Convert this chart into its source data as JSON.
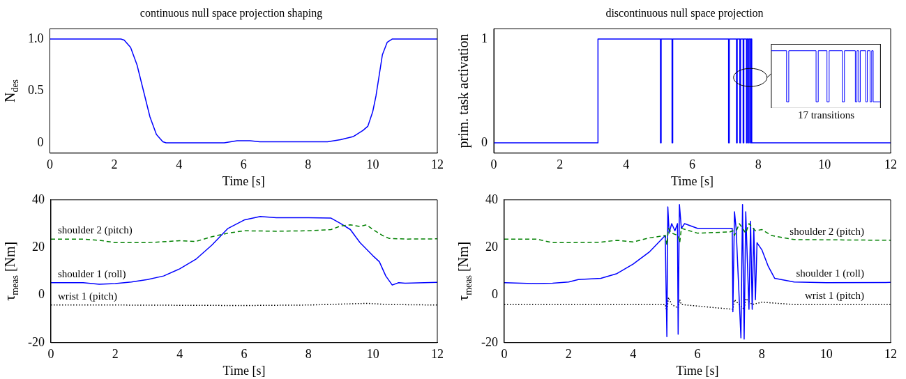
{
  "chart_data": [
    {
      "type": "line",
      "title": "continuous null space projection shaping",
      "xlabel": "Time [s]",
      "ylabel": "N$_{des}$",
      "xlim": [
        0,
        12
      ],
      "xticks": [
        0,
        2,
        4,
        6,
        8,
        10,
        12
      ],
      "ylim": [
        -0.1,
        1.1
      ],
      "yticks": [
        0,
        0.5,
        {
          "value": 1,
          "label": "1.0"
        }
      ],
      "grid": false,
      "legend": false,
      "series": [
        {
          "color": "#0000ff",
          "x": [
            0,
            2.2,
            2.3,
            2.5,
            2.7,
            2.9,
            3.1,
            3.3,
            3.5,
            3.6,
            5.4,
            5.8,
            6.0,
            6.2,
            6.5,
            8.6,
            9.0,
            9.4,
            9.7,
            9.85,
            10.0,
            10.1,
            10.2,
            10.3,
            10.45,
            10.6,
            12
          ],
          "values": [
            1,
            1,
            0.99,
            0.92,
            0.75,
            0.5,
            0.25,
            0.08,
            0.01,
            0,
            0,
            0.02,
            0.02,
            0.02,
            0.01,
            0.01,
            0.03,
            0.06,
            0.12,
            0.16,
            0.3,
            0.45,
            0.65,
            0.85,
            0.97,
            1,
            1
          ]
        }
      ]
    },
    {
      "type": "step",
      "title": "discontinuous null space projection",
      "xlabel": "Time [s]",
      "ylabel": "prim. task activation",
      "xlim": [
        0,
        12
      ],
      "xticks": [
        0,
        2,
        4,
        6,
        8,
        10,
        12
      ],
      "ylim": [
        -0.1,
        1.1
      ],
      "yticks": [
        0,
        1
      ],
      "grid": false,
      "legend": false,
      "annotations": [
        "17 transitions"
      ],
      "series": [
        {
          "color": "#0000ff",
          "x": [
            0,
            3.15,
            5.04,
            5.06,
            5.39,
            5.41,
            7.1,
            7.12,
            7.34,
            7.36,
            7.44,
            7.46,
            7.54,
            7.56,
            7.64,
            7.66,
            7.7,
            7.72,
            7.76,
            7.78,
            7.8,
            12
          ],
          "values": [
            0,
            1,
            0,
            1,
            0,
            1,
            0,
            1,
            0,
            1,
            0,
            1,
            0,
            1,
            0,
            1,
            0,
            1,
            0,
            1,
            0,
            0
          ]
        }
      ]
    },
    {
      "type": "line",
      "xlabel": "Time [s]",
      "ylabel": "τ$_{meas}$ [Nm]",
      "xlim": [
        0,
        12
      ],
      "xticks": [
        0,
        2,
        4,
        6,
        8,
        10,
        12
      ],
      "ylim": [
        -20,
        40
      ],
      "yticks": [
        -20,
        0,
        20,
        40
      ],
      "grid": false,
      "legend": false,
      "series": [
        {
          "name": "shoulder 2 (pitch)",
          "color": "#008000",
          "line_style": "dashed",
          "x": [
            0,
            1,
            1.5,
            2,
            3,
            4,
            4.5,
            5,
            5.5,
            6,
            7,
            8,
            8.7,
            9,
            9.3,
            9.6,
            9.8,
            10,
            10.3,
            10.5,
            11,
            12
          ],
          "values": [
            23.5,
            23.5,
            23,
            22,
            22,
            22.8,
            22.5,
            24.5,
            26,
            27,
            26.8,
            27,
            27.5,
            29,
            29.5,
            28.8,
            29.5,
            27.5,
            25,
            23.8,
            23.5,
            23.6
          ]
        },
        {
          "name": "shoulder 1 (roll)",
          "color": "#0000ff",
          "line_style": "solid",
          "x": [
            0,
            1,
            1.5,
            2,
            2.5,
            3,
            3.5,
            4,
            4.5,
            5,
            5.5,
            6,
            6.5,
            7,
            8,
            8.7,
            9,
            9.3,
            9.6,
            10,
            10.2,
            10.4,
            10.6,
            10.8,
            11,
            12
          ],
          "values": [
            5.2,
            5.2,
            4.5,
            4.8,
            5.5,
            6.5,
            8,
            11,
            15,
            21,
            28,
            31.5,
            33,
            32.5,
            32.5,
            32.3,
            30,
            27.5,
            22,
            16.5,
            14,
            8,
            4.2,
            5.2,
            5,
            5.3
          ]
        },
        {
          "name": "wrist 1 (pitch)",
          "color": "#000000",
          "line_style": "dotted",
          "x": [
            0,
            2,
            4,
            6,
            8,
            9.8,
            10.5,
            12
          ],
          "values": [
            -4.2,
            -4.2,
            -4.3,
            -4.4,
            -4.2,
            -3.5,
            -4,
            -4.2
          ]
        }
      ]
    },
    {
      "type": "line",
      "xlabel": "Time [s]",
      "ylabel": "τ$_{meas}$ [Nm]",
      "xlim": [
        0,
        12
      ],
      "xticks": [
        0,
        2,
        4,
        6,
        8,
        10,
        12
      ],
      "ylim": [
        -20,
        40
      ],
      "yticks": [
        -20,
        0,
        20,
        40
      ],
      "grid": false,
      "legend": false,
      "series": [
        {
          "name": "shoulder 2 (pitch)",
          "color": "#008000",
          "line_style": "dashed",
          "x": [
            0,
            1,
            1.5,
            2,
            3,
            3.5,
            4,
            4.5,
            5,
            5.05,
            5.1,
            5.2,
            5.4,
            5.45,
            5.5,
            6,
            7,
            7.1,
            7.15,
            7.3,
            7.5,
            7.6,
            7.8,
            8,
            8.3,
            9,
            12
          ],
          "values": [
            23.5,
            23.5,
            22,
            22,
            22.2,
            23,
            22.3,
            24,
            25,
            21,
            28,
            26,
            25,
            22,
            28,
            26,
            26.5,
            27,
            25,
            30,
            26,
            30,
            27,
            27.5,
            25,
            23.3,
            23
          ]
        },
        {
          "name": "shoulder 1 (roll)",
          "color": "#0000ff",
          "line_style": "solid",
          "x": [
            0,
            1,
            1.5,
            2,
            2.3,
            3,
            3.5,
            4,
            4.5,
            5,
            5.05,
            5.08,
            5.12,
            5.2,
            5.3,
            5.38,
            5.4,
            5.44,
            5.5,
            5.6,
            6,
            6.5,
            7,
            7.08,
            7.1,
            7.15,
            7.2,
            7.35,
            7.4,
            7.45,
            7.5,
            7.6,
            7.65,
            7.7,
            7.75,
            7.8,
            7.85,
            8,
            8.2,
            8.4,
            9,
            10,
            12
          ],
          "values": [
            5.2,
            4.8,
            5,
            5.5,
            6.5,
            7,
            9,
            13,
            18,
            25,
            -17.5,
            37,
            26,
            30,
            27,
            30,
            -16.5,
            38,
            28,
            30,
            28,
            28,
            28,
            28,
            -7,
            35,
            28,
            -18,
            38,
            -18.5,
            35,
            -6,
            31,
            -6,
            28,
            -2,
            22,
            19,
            12,
            7,
            5.5,
            5.2,
            5.3
          ]
        },
        {
          "name": "wrist 1 (pitch)",
          "color": "#000000",
          "line_style": "dotted",
          "x": [
            0,
            5,
            5.05,
            5.1,
            5.2,
            5.4,
            5.45,
            5.5,
            7.1,
            7.15,
            7.3,
            7.45,
            7.5,
            7.7,
            8,
            9,
            12
          ],
          "values": [
            -4,
            -4,
            -7,
            -1,
            -4,
            -5.5,
            -2,
            -4,
            -6,
            -2,
            -4,
            -6,
            -1.5,
            -4,
            -3,
            -4,
            -4
          ]
        }
      ]
    }
  ]
}
